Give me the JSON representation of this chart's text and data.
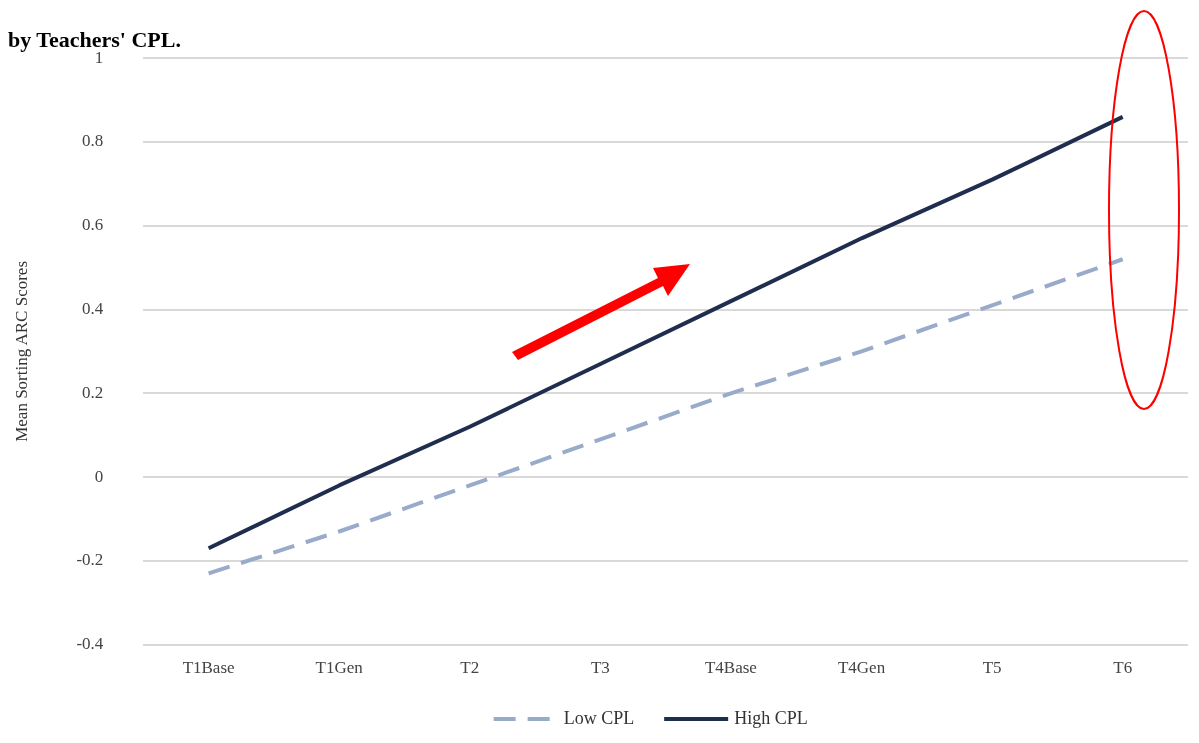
{
  "chart_data": {
    "type": "line",
    "title": "by Teachers' CPL.",
    "ylabel": "Mean Sorting ARC Scores",
    "categories": [
      "T1Base",
      "T1Gen",
      "T2",
      "T3",
      "T4Base",
      "T4Gen",
      "T5",
      "T6"
    ],
    "series": [
      {
        "name": "Low CPL",
        "color": "#98abcb",
        "line_style": "dashed",
        "values": [
          -0.23,
          -0.13,
          -0.02,
          0.09,
          0.2,
          0.3,
          0.41,
          0.52
        ]
      },
      {
        "name": "High CPL",
        "color": "#1f2d4e",
        "line_style": "solid",
        "values": [
          -0.17,
          -0.02,
          0.12,
          0.27,
          0.42,
          0.57,
          0.71,
          0.86
        ]
      }
    ],
    "ylim": [
      -0.4,
      1
    ],
    "yticks": [
      -0.4,
      -0.2,
      0,
      0.2,
      0.4,
      0.6,
      0.8,
      1
    ],
    "grid": "y",
    "legend": "bottom",
    "marker": "none"
  }
}
